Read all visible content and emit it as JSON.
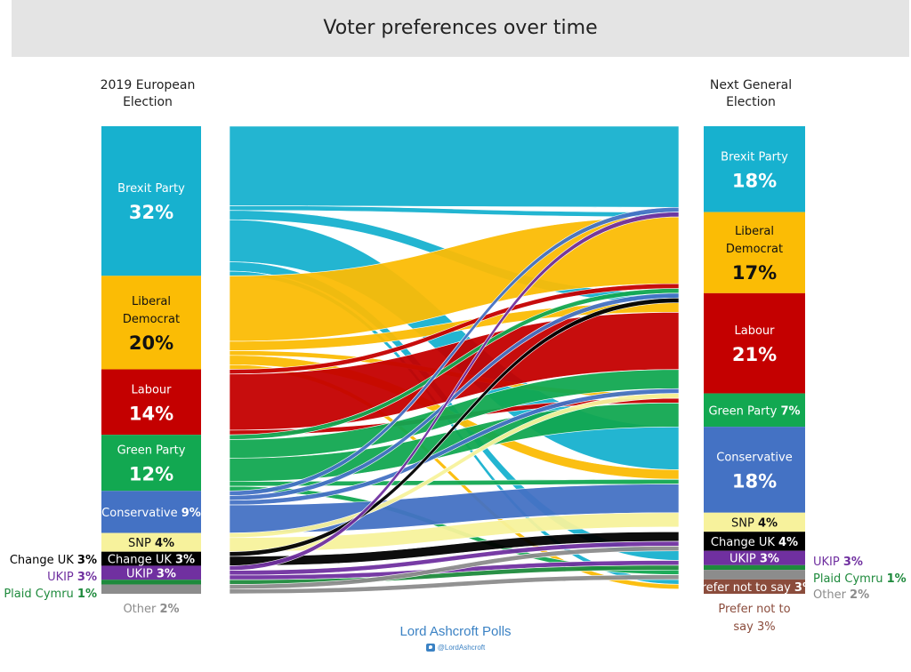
{
  "title": "Voter preferences over time",
  "left_header": "2019 European\nElection",
  "right_header": "Next General\nElection",
  "footer": "Lord Ashcroft Polls",
  "twitter_handle": "@LordAshcroft",
  "chart_data": {
    "type": "sankey",
    "left_column": "2019 European Election",
    "right_column": "Next General Election",
    "left_nodes": [
      {
        "name": "Brexit Party",
        "value": 32,
        "label_pct": "32%",
        "color": "#17b1cf"
      },
      {
        "name": "Liberal Democrat",
        "value": 20,
        "label_pct": "20%",
        "color": "#fbbc05"
      },
      {
        "name": "Labour",
        "value": 14,
        "label_pct": "14%",
        "color": "#c40000"
      },
      {
        "name": "Green Party",
        "value": 12,
        "label_pct": "12%",
        "color": "#12a851"
      },
      {
        "name": "Conservative",
        "value": 9,
        "label_pct": "9%",
        "color": "#4472c4"
      },
      {
        "name": "SNP",
        "value": 4,
        "label_pct": "4%",
        "color": "#f7f29c"
      },
      {
        "name": "Change UK",
        "value": 3,
        "label_pct": "3%",
        "color": "#000000"
      },
      {
        "name": "UKIP",
        "value": 3,
        "label_pct": "3%",
        "color": "#7030a0"
      },
      {
        "name": "Plaid Cymru",
        "value": 1,
        "label_pct": "1%",
        "color": "#1e8a3c"
      },
      {
        "name": "Other",
        "value": 2,
        "label_pct": "2%",
        "color": "#8c8c8c"
      }
    ],
    "right_nodes": [
      {
        "name": "Brexit Party",
        "value": 18,
        "label_pct": "18%",
        "color": "#17b1cf"
      },
      {
        "name": "Liberal Democrat",
        "value": 17,
        "label_pct": "17%",
        "color": "#fbbc05"
      },
      {
        "name": "Labour",
        "value": 21,
        "label_pct": "21%",
        "color": "#c40000"
      },
      {
        "name": "Green Party",
        "value": 7,
        "label_pct": "7%",
        "color": "#12a851"
      },
      {
        "name": "Conservative",
        "value": 18,
        "label_pct": "18%",
        "color": "#4472c4"
      },
      {
        "name": "SNP",
        "value": 4,
        "label_pct": "4%",
        "color": "#f7f29c"
      },
      {
        "name": "Change UK",
        "value": 4,
        "label_pct": "4%",
        "color": "#000000"
      },
      {
        "name": "UKIP",
        "value": 3,
        "label_pct": "3%",
        "color": "#7030a0"
      },
      {
        "name": "Plaid Cymru",
        "value": 1,
        "label_pct": "1%",
        "color": "#1e8a3c"
      },
      {
        "name": "Other",
        "value": 2,
        "label_pct": "2%",
        "color": "#8c8c8c"
      },
      {
        "name": "Prefer not to say",
        "value": 3,
        "label_pct": "3%",
        "color": "#8b4c3c"
      }
    ],
    "flows": [
      {
        "from": "Brexit Party",
        "to": "Brexit Party",
        "value": 17
      },
      {
        "from": "Brexit Party",
        "to": "Conservative",
        "value": 9
      },
      {
        "from": "Brexit Party",
        "to": "Labour",
        "value": 2
      },
      {
        "from": "Brexit Party",
        "to": "Liberal Democrat",
        "value": 1
      },
      {
        "from": "Brexit Party",
        "to": "UKIP",
        "value": 2
      },
      {
        "from": "Brexit Party",
        "to": "Prefer not to say",
        "value": 1
      },
      {
        "from": "Liberal Democrat",
        "to": "Liberal Democrat",
        "value": 14
      },
      {
        "from": "Liberal Democrat",
        "to": "Labour",
        "value": 2
      },
      {
        "from": "Liberal Democrat",
        "to": "Conservative",
        "value": 2
      },
      {
        "from": "Liberal Democrat",
        "to": "Green Party",
        "value": 1
      },
      {
        "from": "Liberal Democrat",
        "to": "Prefer not to say",
        "value": 1
      },
      {
        "from": "Labour",
        "to": "Labour",
        "value": 12
      },
      {
        "from": "Labour",
        "to": "Liberal Democrat",
        "value": 1
      },
      {
        "from": "Labour",
        "to": "Green Party",
        "value": 1
      },
      {
        "from": "Green Party",
        "to": "Labour",
        "value": 4
      },
      {
        "from": "Green Party",
        "to": "Green Party",
        "value": 5
      },
      {
        "from": "Green Party",
        "to": "Liberal Democrat",
        "value": 1
      },
      {
        "from": "Green Party",
        "to": "Conservative",
        "value": 1
      },
      {
        "from": "Green Party",
        "to": "Other",
        "value": 1
      },
      {
        "from": "Conservative",
        "to": "Conservative",
        "value": 6
      },
      {
        "from": "Conservative",
        "to": "Brexit Party",
        "value": 1
      },
      {
        "from": "Conservative",
        "to": "Liberal Democrat",
        "value": 1
      },
      {
        "from": "Conservative",
        "to": "Labour",
        "value": 1
      },
      {
        "from": "SNP",
        "to": "SNP",
        "value": 3
      },
      {
        "from": "SNP",
        "to": "Labour",
        "value": 1
      },
      {
        "from": "Change UK",
        "to": "Change UK",
        "value": 2
      },
      {
        "from": "Change UK",
        "to": "Liberal Democrat",
        "value": 1
      },
      {
        "from": "UKIP",
        "to": "UKIP",
        "value": 1
      },
      {
        "from": "UKIP",
        "to": "Brexit Party",
        "value": 1
      },
      {
        "from": "UKIP",
        "to": "Change UK",
        "value": 1
      },
      {
        "from": "Plaid Cymru",
        "to": "Plaid Cymru",
        "value": 1
      },
      {
        "from": "Other",
        "to": "Other",
        "value": 1
      },
      {
        "from": "Other",
        "to": "Change UK",
        "value": 1
      }
    ]
  }
}
